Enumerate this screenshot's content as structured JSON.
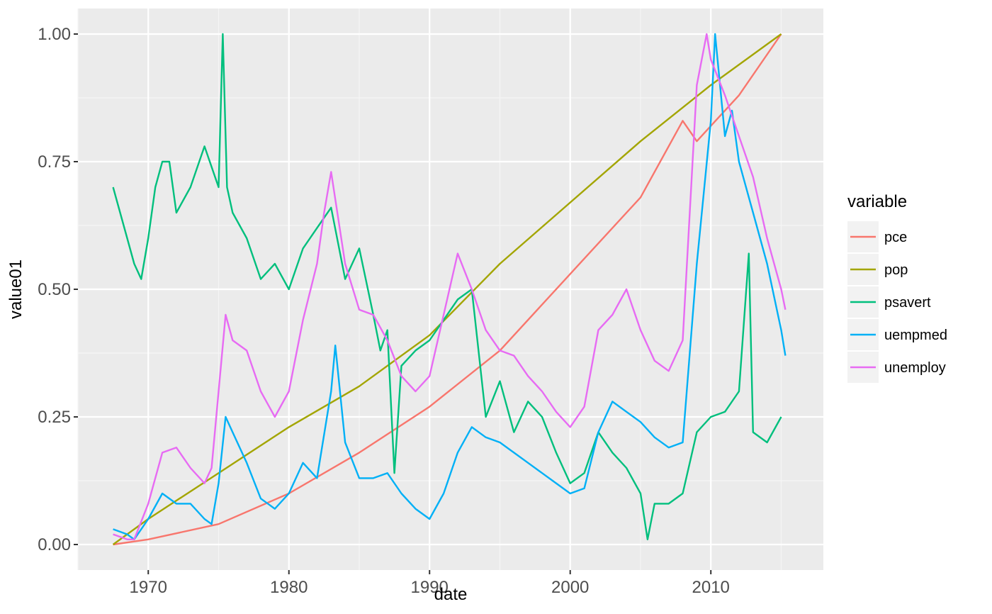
{
  "chart_data": {
    "type": "line",
    "title": "",
    "xlabel": "date",
    "ylabel": "value01",
    "xlim": [
      1965,
      2018
    ],
    "ylim": [
      -0.05,
      1.05
    ],
    "x_ticks": [
      1970,
      1980,
      1990,
      2000,
      2010
    ],
    "x_tick_labels": [
      "1970",
      "1980",
      "1990",
      "2000",
      "2010"
    ],
    "y_ticks": [
      0,
      0.25,
      0.5,
      0.75,
      1
    ],
    "y_tick_labels": [
      "0.00",
      "0.25",
      "0.50",
      "0.75",
      "1.00"
    ],
    "grid": true,
    "legend": {
      "title": "variable",
      "position": "right"
    },
    "series": [
      {
        "name": "pce",
        "color": "#F8766D",
        "x": [
          1967.5,
          1970,
          1975,
          1980,
          1985,
          1990,
          1995,
          2000,
          2005,
          2008,
          2009,
          2010,
          2012,
          2015
        ],
        "y": [
          0.0,
          0.01,
          0.04,
          0.1,
          0.18,
          0.27,
          0.38,
          0.53,
          0.68,
          0.83,
          0.79,
          0.82,
          0.88,
          1.0
        ]
      },
      {
        "name": "pop",
        "color": "#A3A500",
        "x": [
          1967.5,
          1970,
          1975,
          1980,
          1985,
          1990,
          1995,
          2000,
          2005,
          2010,
          2015
        ],
        "y": [
          0.0,
          0.05,
          0.14,
          0.23,
          0.31,
          0.41,
          0.55,
          0.67,
          0.79,
          0.9,
          1.0
        ]
      },
      {
        "name": "psavert",
        "color": "#00BF7D",
        "x": [
          1967.5,
          1968.5,
          1969,
          1969.5,
          1970,
          1970.5,
          1971,
          1971.5,
          1972,
          1973,
          1974,
          1975,
          1975.3,
          1975.6,
          1976,
          1977,
          1978,
          1979,
          1980,
          1981,
          1982,
          1983,
          1984,
          1985,
          1986,
          1986.5,
          1987,
          1987.5,
          1988,
          1989,
          1990,
          1991,
          1992,
          1993,
          1994,
          1995,
          1996,
          1997,
          1998,
          1999,
          2000,
          2001,
          2002,
          2003,
          2004,
          2005,
          2005.5,
          2006,
          2007,
          2008,
          2009,
          2010,
          2011,
          2012,
          2012.7,
          2013,
          2014,
          2015
        ],
        "y": [
          0.7,
          0.6,
          0.55,
          0.52,
          0.6,
          0.7,
          0.75,
          0.75,
          0.65,
          0.7,
          0.78,
          0.7,
          1.0,
          0.7,
          0.65,
          0.6,
          0.52,
          0.55,
          0.5,
          0.58,
          0.62,
          0.66,
          0.52,
          0.58,
          0.45,
          0.38,
          0.42,
          0.14,
          0.35,
          0.38,
          0.4,
          0.44,
          0.48,
          0.5,
          0.25,
          0.32,
          0.22,
          0.28,
          0.25,
          0.18,
          0.12,
          0.14,
          0.22,
          0.18,
          0.15,
          0.1,
          0.01,
          0.08,
          0.08,
          0.1,
          0.22,
          0.25,
          0.26,
          0.3,
          0.57,
          0.22,
          0.2,
          0.25
        ]
      },
      {
        "name": "uempmed",
        "color": "#00B0F6",
        "x": [
          1967.5,
          1968.5,
          1969,
          1970,
          1971,
          1972,
          1973,
          1974,
          1974.5,
          1975,
          1975.5,
          1976,
          1977,
          1978,
          1979,
          1980,
          1981,
          1982,
          1983,
          1983.3,
          1984,
          1985,
          1986,
          1987,
          1988,
          1989,
          1990,
          1991,
          1992,
          1993,
          1994,
          1995,
          1996,
          1997,
          1998,
          1999,
          2000,
          2001,
          2002,
          2003,
          2004,
          2005,
          2006,
          2007,
          2008,
          2009,
          2010,
          2010.3,
          2011,
          2011.5,
          2012,
          2013,
          2014,
          2015,
          2015.3
        ],
        "y": [
          0.03,
          0.02,
          0.01,
          0.05,
          0.1,
          0.08,
          0.08,
          0.05,
          0.04,
          0.12,
          0.25,
          0.22,
          0.16,
          0.09,
          0.07,
          0.1,
          0.16,
          0.13,
          0.3,
          0.39,
          0.2,
          0.13,
          0.13,
          0.14,
          0.1,
          0.07,
          0.05,
          0.1,
          0.18,
          0.23,
          0.21,
          0.2,
          0.18,
          0.16,
          0.14,
          0.12,
          0.1,
          0.11,
          0.22,
          0.28,
          0.26,
          0.24,
          0.21,
          0.19,
          0.2,
          0.55,
          0.83,
          1.0,
          0.8,
          0.85,
          0.75,
          0.65,
          0.55,
          0.42,
          0.37
        ]
      },
      {
        "name": "unemploy",
        "color": "#E76BF3",
        "x": [
          1967.5,
          1968.5,
          1969,
          1970,
          1971,
          1972,
          1973,
          1974,
          1974.5,
          1975,
          1975.5,
          1976,
          1977,
          1978,
          1979,
          1980,
          1981,
          1982,
          1982.5,
          1983,
          1984,
          1985,
          1986,
          1987,
          1988,
          1989,
          1990,
          1991,
          1992,
          1993,
          1994,
          1995,
          1996,
          1997,
          1998,
          1999,
          2000,
          2001,
          2002,
          2003,
          2004,
          2005,
          2006,
          2007,
          2008,
          2009,
          2009.7,
          2010,
          2011,
          2012,
          2013,
          2014,
          2015,
          2015.3
        ],
        "y": [
          0.02,
          0.01,
          0.01,
          0.08,
          0.18,
          0.19,
          0.15,
          0.12,
          0.15,
          0.3,
          0.45,
          0.4,
          0.38,
          0.3,
          0.25,
          0.3,
          0.44,
          0.55,
          0.65,
          0.73,
          0.55,
          0.46,
          0.45,
          0.4,
          0.33,
          0.3,
          0.33,
          0.45,
          0.57,
          0.5,
          0.42,
          0.38,
          0.37,
          0.33,
          0.3,
          0.26,
          0.23,
          0.27,
          0.42,
          0.45,
          0.5,
          0.42,
          0.36,
          0.34,
          0.4,
          0.9,
          1.0,
          0.95,
          0.88,
          0.8,
          0.72,
          0.6,
          0.5,
          0.46
        ]
      }
    ]
  }
}
